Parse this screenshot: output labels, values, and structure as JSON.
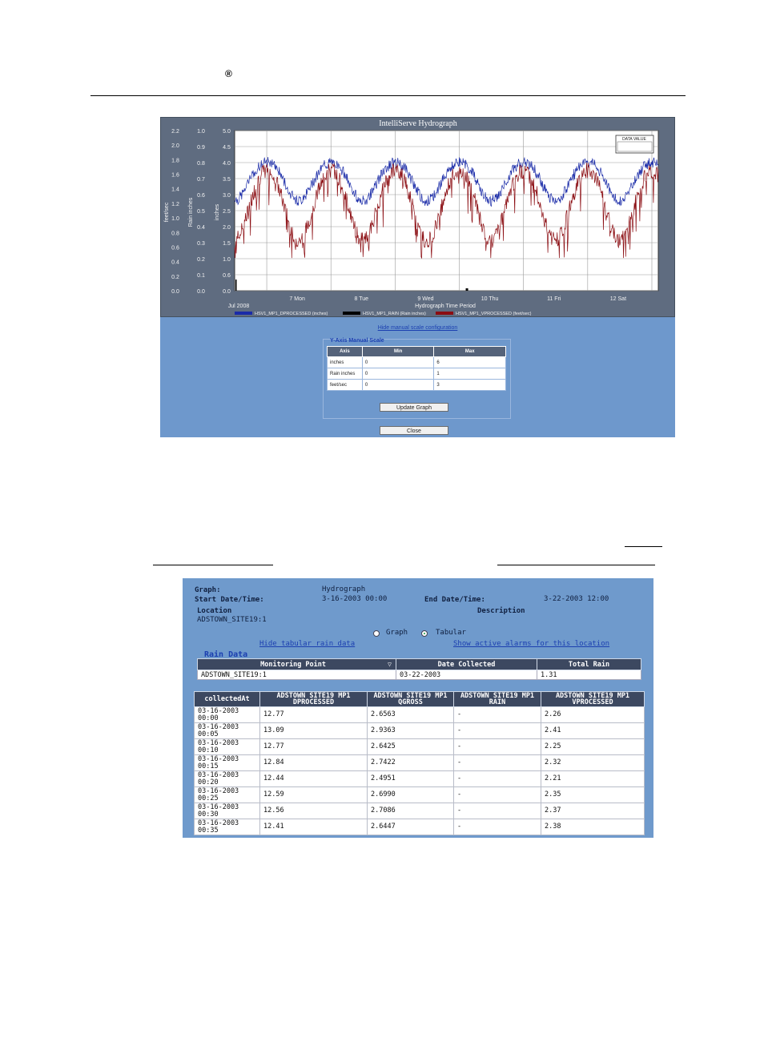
{
  "header": {
    "registered_mark": "®"
  },
  "hydrograph": {
    "title": "IntelliServe Hydrograph",
    "axis_inches_label": "inches",
    "axis_rain_label": "Rain inches",
    "axis_feet_label": "feet/sec",
    "legend_box_label": "DATA VALUE",
    "x_title": "Hydrograph Time Period",
    "month_label": "Jul 2008",
    "legend": [
      {
        "label": "HSV1_MP1_DPROCESSED (inches)",
        "color": "#1a2ba8"
      },
      {
        "label": "HSV1_MP1_RAIN (Rain inches)",
        "color": "#000000"
      },
      {
        "label": "HSV1_MP1_VPROCESSED (feet/sec)",
        "color": "#8b0d12"
      }
    ]
  },
  "chart_data": {
    "type": "line",
    "title": "IntelliServe Hydrograph",
    "xlabel": "Hydrograph Time Period",
    "x_ticks": [
      "7 Mon",
      "8 Tue",
      "9 Wed",
      "10 Thu",
      "11 Fri",
      "12 Sat"
    ],
    "x_range_days": [
      6.0,
      12.6
    ],
    "y_axes": [
      {
        "name": "feet/sec",
        "range": [
          0,
          2.2
        ],
        "ticks": [
          "0.0",
          "0.2",
          "0.4",
          "0.6",
          "0.8",
          "1.0",
          "1.2",
          "1.4",
          "1.6",
          "1.8",
          "2.0",
          "2.2"
        ]
      },
      {
        "name": "Rain inches",
        "range": [
          0,
          1.0
        ],
        "ticks": [
          "0.0",
          "0.1",
          "0.2",
          "0.3",
          "0.4",
          "0.5",
          "0.6",
          "0.7",
          "0.8",
          "0.9",
          "1.0"
        ]
      },
      {
        "name": "inches",
        "range": [
          0,
          5.0
        ],
        "ticks": [
          "0.0",
          "0.6",
          "1.0",
          "1.5",
          "2.0",
          "2.5",
          "3.0",
          "3.5",
          "4.0",
          "4.5",
          "5.0"
        ]
      }
    ],
    "series": [
      {
        "name": "HSV1_MP1_DPROCESSED (inches)",
        "axis": "inches",
        "color": "#1a2ba8",
        "min": 2.6,
        "max": 4.6
      },
      {
        "name": "HSV1_MP1_VPROCESSED (feet/sec)",
        "axis": "feet/sec",
        "color": "#8b0d12",
        "min": 0.45,
        "max": 1.85
      },
      {
        "name": "HSV1_MP1_RAIN (Rain inches)",
        "axis": "Rain inches",
        "color": "#000000",
        "max": 0.03
      }
    ],
    "grid": true,
    "legend": "bottom"
  },
  "scale_config": {
    "hide_link": "Hide manual scale configuration",
    "panel_title": "Y-Axis Manual Scale",
    "headers": [
      "Axis",
      "Min",
      "Max"
    ],
    "rows": [
      {
        "axis": "inches",
        "min": "0",
        "max": "6"
      },
      {
        "axis": "Rain inches",
        "min": "0",
        "max": "1"
      },
      {
        "axis": "feet/sec",
        "min": "0",
        "max": "3"
      }
    ],
    "update_label": "Update Graph",
    "close_label": "Close"
  },
  "tabular": {
    "graph_label": "Graph:",
    "graph_value": "Hydrograph",
    "start_label": "Start Date/Time:",
    "start_value": "3-16-2003 00:00",
    "end_label": "End Date/Time:",
    "end_value": "3-22-2003 12:00",
    "location_label": "Location",
    "location_value": "ADSTOWN_SITE19:1",
    "description_label": "Description",
    "radio_graph": "Graph",
    "radio_tabular": "Tabular",
    "hide_rain_link": "Hide tabular rain data",
    "show_alarms_link": "Show active alarms for this location",
    "rain_title": "Rain Data",
    "rain_headers": [
      "Monitoring Point",
      "Date Collected",
      "Total Rain"
    ],
    "rain_row": {
      "point": "ADSTOWN_SITE19:1",
      "date": "03-22-2003",
      "total": "1.31"
    },
    "columns": [
      "collectedAt",
      "ADSTOWN SITE19 MP1 DPROCESSED",
      "ADSTOWN SITE19 MP1 QGROSS",
      "ADSTOWN SITE19 MP1 RAIN",
      "ADSTOWN SITE19 MP1 VPROCESSED"
    ],
    "rows": [
      {
        "time": "03-16-2003 00:00",
        "dp": "12.77",
        "qg": "2.6563",
        "rain": "-",
        "vp": "2.26"
      },
      {
        "time": "03-16-2003 00:05",
        "dp": "13.09",
        "qg": "2.9363",
        "rain": "-",
        "vp": "2.41"
      },
      {
        "time": "03-16-2003 00:10",
        "dp": "12.77",
        "qg": "2.6425",
        "rain": "-",
        "vp": "2.25"
      },
      {
        "time": "03-16-2003 00:15",
        "dp": "12.84",
        "qg": "2.7422",
        "rain": "-",
        "vp": "2.32"
      },
      {
        "time": "03-16-2003 00:20",
        "dp": "12.44",
        "qg": "2.4951",
        "rain": "-",
        "vp": "2.21"
      },
      {
        "time": "03-16-2003 00:25",
        "dp": "12.59",
        "qg": "2.6990",
        "rain": "-",
        "vp": "2.35"
      },
      {
        "time": "03-16-2003 00:30",
        "dp": "12.56",
        "qg": "2.7086",
        "rain": "-",
        "vp": "2.37"
      },
      {
        "time": "03-16-2003 00:35",
        "dp": "12.41",
        "qg": "2.6447",
        "rain": "-",
        "vp": "2.38"
      }
    ]
  }
}
